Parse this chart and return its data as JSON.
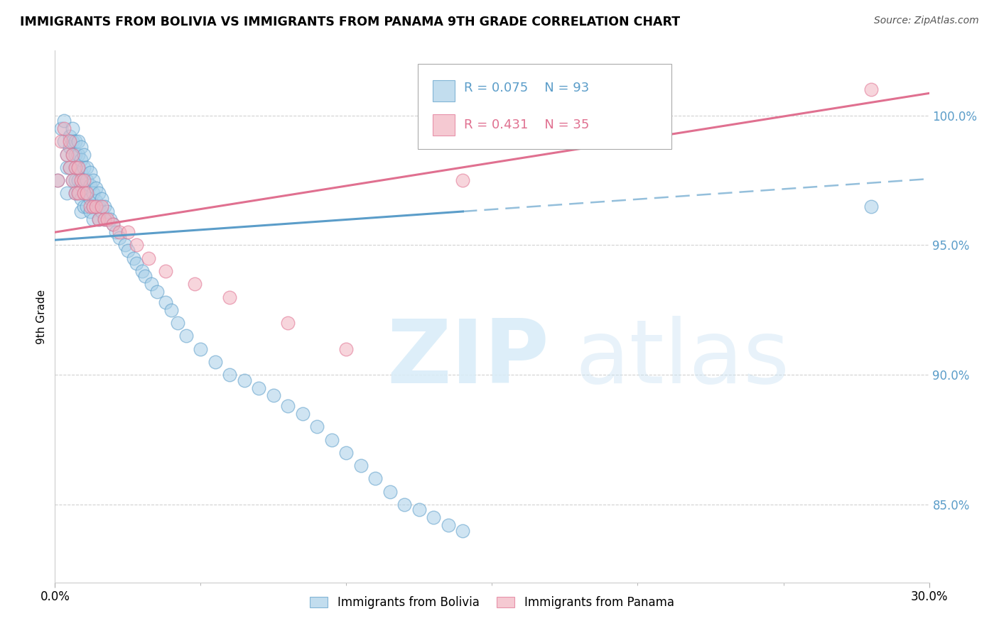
{
  "title": "IMMIGRANTS FROM BOLIVIA VS IMMIGRANTS FROM PANAMA 9TH GRADE CORRELATION CHART",
  "source": "Source: ZipAtlas.com",
  "ylabel": "9th Grade",
  "xlim": [
    0.0,
    0.3
  ],
  "ylim": [
    82.0,
    102.5
  ],
  "ytick_vals": [
    85.0,
    90.0,
    95.0,
    100.0
  ],
  "ytick_labels": [
    "85.0%",
    "90.0%",
    "95.0%",
    "100.0%"
  ],
  "legend_r_bolivia": "R = 0.075",
  "legend_n_bolivia": "N = 93",
  "legend_r_panama": "R = 0.431",
  "legend_n_panama": "N = 35",
  "color_bolivia": "#a8cfe8",
  "color_panama": "#f2b3c0",
  "color_bolivia_line": "#5b9dc9",
  "color_panama_line": "#e07090",
  "bolivia_x": [
    0.001,
    0.002,
    0.003,
    0.003,
    0.004,
    0.004,
    0.004,
    0.005,
    0.005,
    0.005,
    0.006,
    0.006,
    0.006,
    0.006,
    0.007,
    0.007,
    0.007,
    0.007,
    0.007,
    0.008,
    0.008,
    0.008,
    0.008,
    0.008,
    0.009,
    0.009,
    0.009,
    0.009,
    0.009,
    0.009,
    0.01,
    0.01,
    0.01,
    0.01,
    0.01,
    0.011,
    0.011,
    0.011,
    0.011,
    0.012,
    0.012,
    0.012,
    0.012,
    0.013,
    0.013,
    0.013,
    0.013,
    0.014,
    0.014,
    0.015,
    0.015,
    0.015,
    0.016,
    0.016,
    0.017,
    0.017,
    0.018,
    0.019,
    0.02,
    0.021,
    0.022,
    0.024,
    0.025,
    0.027,
    0.028,
    0.03,
    0.031,
    0.033,
    0.035,
    0.038,
    0.04,
    0.042,
    0.045,
    0.05,
    0.055,
    0.06,
    0.065,
    0.07,
    0.075,
    0.08,
    0.085,
    0.09,
    0.095,
    0.1,
    0.105,
    0.11,
    0.115,
    0.12,
    0.125,
    0.13,
    0.135,
    0.14,
    0.28
  ],
  "bolivia_y": [
    97.5,
    99.5,
    99.0,
    99.8,
    98.5,
    98.0,
    97.0,
    99.2,
    98.8,
    98.0,
    99.5,
    99.0,
    98.5,
    97.5,
    99.0,
    98.5,
    98.0,
    97.5,
    97.0,
    99.0,
    98.5,
    98.0,
    97.5,
    97.0,
    98.8,
    98.3,
    97.8,
    97.3,
    96.8,
    96.3,
    98.5,
    98.0,
    97.5,
    97.0,
    96.5,
    98.0,
    97.5,
    97.0,
    96.5,
    97.8,
    97.3,
    96.8,
    96.3,
    97.5,
    97.0,
    96.5,
    96.0,
    97.2,
    96.7,
    97.0,
    96.5,
    96.0,
    96.8,
    96.3,
    96.5,
    96.0,
    96.3,
    96.0,
    95.8,
    95.5,
    95.3,
    95.0,
    94.8,
    94.5,
    94.3,
    94.0,
    93.8,
    93.5,
    93.2,
    92.8,
    92.5,
    92.0,
    91.5,
    91.0,
    90.5,
    90.0,
    89.8,
    89.5,
    89.2,
    88.8,
    88.5,
    88.0,
    87.5,
    87.0,
    86.5,
    86.0,
    85.5,
    85.0,
    84.8,
    84.5,
    84.2,
    84.0,
    96.5
  ],
  "panama_x": [
    0.001,
    0.002,
    0.003,
    0.004,
    0.005,
    0.005,
    0.006,
    0.006,
    0.007,
    0.007,
    0.008,
    0.008,
    0.009,
    0.01,
    0.01,
    0.011,
    0.012,
    0.013,
    0.014,
    0.015,
    0.016,
    0.017,
    0.018,
    0.02,
    0.022,
    0.025,
    0.028,
    0.032,
    0.038,
    0.048,
    0.06,
    0.08,
    0.1,
    0.14,
    0.28
  ],
  "panama_y": [
    97.5,
    99.0,
    99.5,
    98.5,
    99.0,
    98.0,
    98.5,
    97.5,
    98.0,
    97.0,
    98.0,
    97.0,
    97.5,
    97.5,
    97.0,
    97.0,
    96.5,
    96.5,
    96.5,
    96.0,
    96.5,
    96.0,
    96.0,
    95.8,
    95.5,
    95.5,
    95.0,
    94.5,
    94.0,
    93.5,
    93.0,
    92.0,
    91.0,
    97.5,
    101.0
  ]
}
